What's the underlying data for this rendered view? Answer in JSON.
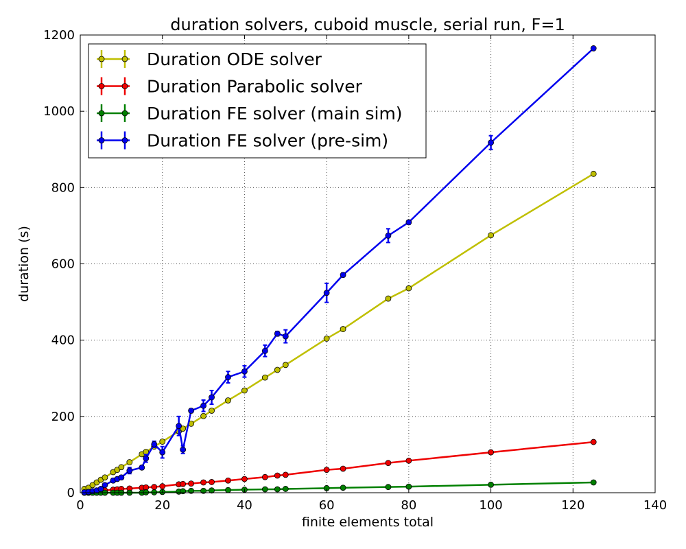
{
  "chart_data": {
    "type": "line",
    "title": "duration solvers, cuboid muscle, serial run, F=1",
    "xlabel": "finite elements total",
    "ylabel": "duration (s)",
    "xlim": [
      0,
      140
    ],
    "ylim": [
      0,
      1200
    ],
    "xticks": [
      0,
      20,
      40,
      60,
      80,
      100,
      120,
      140
    ],
    "yticks": [
      0,
      200,
      400,
      600,
      800,
      1000,
      1200
    ],
    "grid": true,
    "legend_position": "top-left",
    "series": [
      {
        "name": "Duration ODE solver",
        "color": "#bfbf00",
        "x": [
          1,
          2,
          3,
          4,
          5,
          6,
          8,
          9,
          10,
          12,
          15,
          16,
          18,
          20,
          24,
          25,
          27,
          30,
          32,
          36,
          40,
          45,
          48,
          50,
          60,
          64,
          75,
          80,
          100,
          125
        ],
        "y": [
          10,
          13,
          20,
          27,
          34,
          40,
          54,
          60,
          67,
          80,
          101,
          107,
          121,
          134,
          161,
          168,
          181,
          201,
          215,
          242,
          268,
          302,
          322,
          335,
          404,
          429,
          509,
          536,
          675,
          836
        ],
        "err": [
          0,
          0,
          0,
          0,
          0,
          0,
          0,
          0,
          0,
          0,
          0,
          0,
          0,
          0,
          0,
          0,
          0,
          0,
          0,
          0,
          0,
          0,
          0,
          0,
          0,
          0,
          0,
          0,
          0,
          0
        ]
      },
      {
        "name": "Duration Parabolic solver",
        "color": "#ee0000",
        "x": [
          1,
          2,
          3,
          4,
          5,
          6,
          8,
          9,
          10,
          12,
          15,
          16,
          18,
          20,
          24,
          25,
          27,
          30,
          32,
          36,
          40,
          45,
          48,
          50,
          60,
          64,
          75,
          80,
          100,
          125
        ],
        "y": [
          1,
          2,
          3,
          4,
          5,
          6,
          8,
          9,
          10,
          11,
          13,
          14,
          15,
          17,
          22,
          23,
          24,
          27,
          28,
          32,
          36,
          41,
          45,
          47,
          60,
          63,
          78,
          84,
          106,
          133
        ],
        "err": [
          0,
          0,
          0,
          0,
          0,
          0,
          0,
          0,
          0,
          0,
          0,
          0,
          0,
          0,
          0,
          0,
          0,
          0,
          0,
          0,
          0,
          0,
          0,
          0,
          0,
          0,
          0,
          0,
          0,
          0
        ]
      },
      {
        "name": "Duration FE solver (main sim)",
        "color": "#008000",
        "x": [
          1,
          2,
          3,
          4,
          5,
          6,
          8,
          9,
          10,
          12,
          15,
          16,
          18,
          20,
          24,
          25,
          27,
          30,
          32,
          36,
          40,
          45,
          48,
          50,
          60,
          64,
          75,
          80,
          100,
          125
        ],
        "y": [
          0,
          0,
          0,
          0,
          0,
          0,
          0,
          0,
          0,
          0,
          0,
          1,
          1,
          2,
          3,
          4,
          5,
          5,
          6,
          7,
          8,
          9,
          9,
          10,
          12,
          13,
          15,
          16,
          21,
          27
        ],
        "err": [
          0,
          0,
          0,
          0,
          0,
          0,
          0,
          0,
          0,
          0,
          0,
          0,
          0,
          0,
          0,
          0,
          0,
          0,
          0,
          0,
          0,
          0,
          0,
          0,
          0,
          0,
          0,
          0,
          0,
          0
        ]
      },
      {
        "name": "Duration FE solver (pre-sim)",
        "color": "#0000ee",
        "x": [
          1,
          2,
          3,
          4,
          5,
          6,
          8,
          9,
          10,
          12,
          15,
          16,
          18,
          20,
          24,
          25,
          27,
          30,
          32,
          36,
          40,
          45,
          48,
          50,
          60,
          64,
          75,
          80,
          100,
          125
        ],
        "y": [
          1,
          2,
          4,
          6,
          10,
          20,
          32,
          36,
          40,
          58,
          66,
          90,
          127,
          106,
          175,
          113,
          215,
          228,
          250,
          303,
          318,
          372,
          417,
          410,
          524,
          571,
          674,
          709,
          918,
          1165
        ],
        "err": [
          0,
          0,
          0,
          0,
          0,
          3,
          5,
          4,
          5,
          8,
          5,
          10,
          8,
          15,
          25,
          10,
          5,
          15,
          18,
          15,
          15,
          15,
          6,
          17,
          25,
          5,
          18,
          5,
          18,
          3
        ]
      }
    ]
  }
}
